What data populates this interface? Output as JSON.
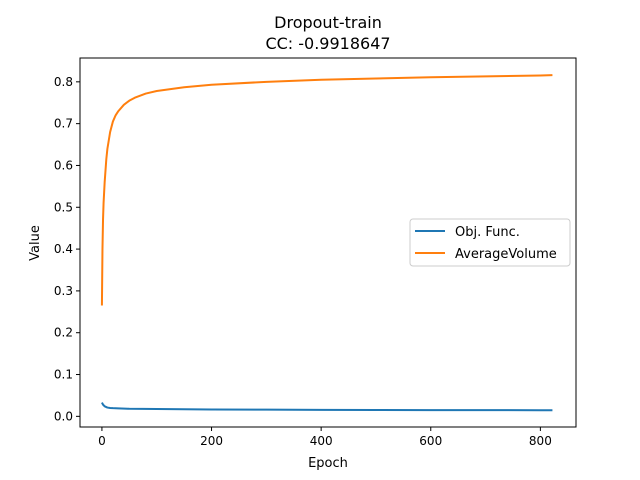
{
  "chart_data": {
    "type": "line",
    "title": "Dropout-train",
    "subtitle": "CC: -0.9918647",
    "xlabel": "Epoch",
    "ylabel": "Value",
    "xlim": [
      -40,
      865
    ],
    "ylim": [
      -0.0255,
      0.857
    ],
    "xticks": [
      0,
      200,
      400,
      600,
      800
    ],
    "yticks": [
      0.0,
      0.1,
      0.2,
      0.3,
      0.4,
      0.5,
      0.6,
      0.7,
      0.8
    ],
    "xtick_labels": [
      "0",
      "200",
      "400",
      "600",
      "800"
    ],
    "ytick_labels": [
      "0.0",
      "0.1",
      "0.2",
      "0.3",
      "0.4",
      "0.5",
      "0.6",
      "0.7",
      "0.8"
    ],
    "grid": false,
    "legend": "center-right",
    "series": [
      {
        "name": "Obj. Func.",
        "color": "#1f77b4",
        "x": [
          0,
          2,
          5,
          10,
          15,
          20,
          30,
          50,
          100,
          200,
          300,
          400,
          500,
          600,
          700,
          800,
          822
        ],
        "y": [
          0.033,
          0.028,
          0.024,
          0.021,
          0.02,
          0.0195,
          0.019,
          0.018,
          0.0175,
          0.0165,
          0.016,
          0.0155,
          0.0152,
          0.015,
          0.0148,
          0.0146,
          0.0145
        ]
      },
      {
        "name": "AverageVolume",
        "color": "#ff7f0e",
        "x": [
          0,
          1,
          2,
          3,
          5,
          8,
          10,
          15,
          20,
          25,
          30,
          40,
          50,
          60,
          80,
          100,
          150,
          200,
          300,
          400,
          500,
          600,
          700,
          800,
          822
        ],
        "y": [
          0.265,
          0.4,
          0.47,
          0.51,
          0.56,
          0.615,
          0.64,
          0.68,
          0.705,
          0.72,
          0.73,
          0.745,
          0.755,
          0.762,
          0.772,
          0.778,
          0.787,
          0.793,
          0.8,
          0.805,
          0.808,
          0.811,
          0.813,
          0.815,
          0.816
        ]
      }
    ]
  }
}
